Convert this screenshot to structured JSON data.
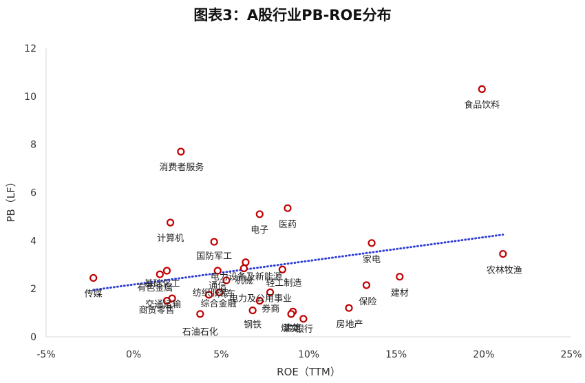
{
  "title": "图表3：A股行业PB-ROE分布",
  "chart_data": {
    "type": "scatter",
    "xlabel": "ROE（TTM）",
    "ylabel": "PB（LF）",
    "xlim": [
      -5,
      25
    ],
    "ylim": [
      0,
      12
    ],
    "x_ticks": [
      -5,
      0,
      5,
      10,
      15,
      20,
      25
    ],
    "x_tick_labels": [
      "-5%",
      "0%",
      "5%",
      "10%",
      "15%",
      "20%",
      "25%"
    ],
    "y_ticks": [
      0,
      2,
      4,
      6,
      8,
      10,
      12
    ],
    "y_tick_labels": [
      "0",
      "2",
      "4",
      "6",
      "8",
      "10",
      "12"
    ],
    "grid": false,
    "marker_color": "#c00000",
    "trendline": {
      "style": "dotted",
      "color": "#2f3fd6",
      "x": [
        -2.3,
        21.1
      ],
      "y": [
        1.95,
        4.25
      ]
    },
    "points": [
      {
        "name": "食品饮料",
        "x": 19.9,
        "y": 10.3
      },
      {
        "name": "消费者服务",
        "x": 2.7,
        "y": 7.7
      },
      {
        "name": "医药",
        "x": 8.8,
        "y": 5.35
      },
      {
        "name": "电子",
        "x": 7.2,
        "y": 5.1
      },
      {
        "name": "计算机",
        "x": 2.1,
        "y": 4.75
      },
      {
        "name": "国防军工",
        "x": 4.6,
        "y": 3.95
      },
      {
        "name": "家电",
        "x": 13.6,
        "y": 3.9
      },
      {
        "name": "农林牧渔",
        "x": 21.1,
        "y": 3.45
      },
      {
        "name": "电力设备及新能源",
        "x": 6.4,
        "y": 3.1
      },
      {
        "name": "机械",
        "x": 6.3,
        "y": 2.85
      },
      {
        "name": "轻工制造",
        "x": 8.5,
        "y": 2.8
      },
      {
        "name": "通信",
        "x": 4.8,
        "y": 2.75
      },
      {
        "name": "基础化工",
        "x": 1.9,
        "y": 2.75
      },
      {
        "name": "有色金属",
        "x": 1.5,
        "y": 2.6
      },
      {
        "name": "传媒",
        "x": -2.3,
        "y": 2.45
      },
      {
        "name": "建材",
        "x": 15.2,
        "y": 2.5
      },
      {
        "name": "汽车",
        "x": 5.3,
        "y": 2.35
      },
      {
        "name": "保险",
        "x": 13.3,
        "y": 2.15
      },
      {
        "name": "电力及公用事业",
        "x": 7.8,
        "y": 1.85
      },
      {
        "name": "纺织服装",
        "x": 4.9,
        "y": 1.85
      },
      {
        "name": "综合金融",
        "x": 4.3,
        "y": 1.75
      },
      {
        "name": "交通运输",
        "x": 2.2,
        "y": 1.6
      },
      {
        "name": "商贸零售",
        "x": 1.9,
        "y": 1.5
      },
      {
        "name": "券商",
        "x": 7.2,
        "y": 1.5
      },
      {
        "name": "房地产",
        "x": 12.3,
        "y": 1.2
      },
      {
        "name": "钢铁",
        "x": 6.8,
        "y": 1.1
      },
      {
        "name": "建筑",
        "x": 9.1,
        "y": 1.05
      },
      {
        "name": "煤炭",
        "x": 9.0,
        "y": 0.95
      },
      {
        "name": "石油石化",
        "x": 3.8,
        "y": 0.95
      },
      {
        "name": "银行",
        "x": 9.7,
        "y": 0.75
      }
    ]
  }
}
